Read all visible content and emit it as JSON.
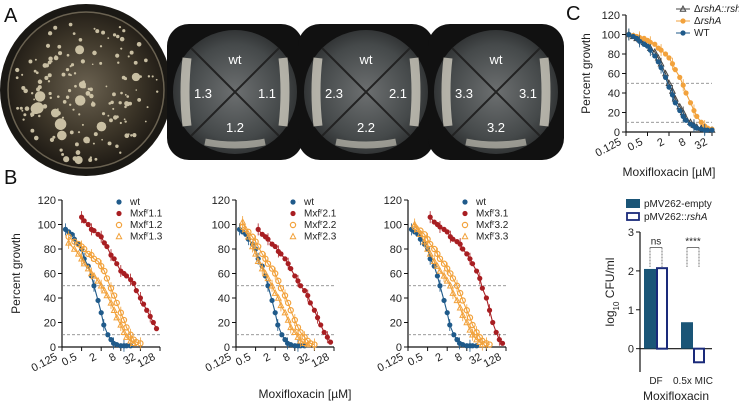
{
  "panels": {
    "a": "A",
    "b": "B",
    "c": "C"
  },
  "colors": {
    "wt": "#1f5a8a",
    "red": "#a81e22",
    "orange": "#f2a23c",
    "navy": "#1a2a7a",
    "teal": "#1a5577",
    "gray": "#555555"
  },
  "plates": {
    "wt_label": "wt",
    "plate1": [
      "1.3",
      "1.1",
      "1.2"
    ],
    "plate2": [
      "2.3",
      "2.1",
      "2.2"
    ],
    "plate3": [
      "3.3",
      "3.1",
      "3.2"
    ]
  },
  "chart_data": [
    {
      "type": "line",
      "id": "B1",
      "xlabel": "",
      "ylabel": "Percent growth",
      "xscale": "log2",
      "xticks": [
        "0.125",
        "0.5",
        "2",
        "8",
        "32",
        "128"
      ],
      "xlim": [
        0.125,
        128
      ],
      "yticks": [
        0,
        20,
        40,
        60,
        80,
        100,
        120
      ],
      "ylim": [
        0,
        120
      ],
      "reference_lines": [
        50,
        10
      ],
      "legend": [
        {
          "name": "wt",
          "prefix": "wt",
          "sup": "",
          "suffix": ""
        },
        {
          "name": "Mxf r 1.1",
          "prefix": "Mxf",
          "sup": "r",
          "suffix": "1.1"
        },
        {
          "name": "Mxf r 1.2",
          "prefix": "Mxf",
          "sup": "r",
          "suffix": "1.2"
        },
        {
          "name": "Mxf r 1.3",
          "prefix": "Mxf",
          "sup": "r",
          "suffix": "1.3"
        }
      ],
      "series": [
        {
          "name": "wt",
          "style": "filled",
          "color": "#1f5a8a",
          "x": [
            0.16,
            0.2,
            0.25,
            0.3,
            0.4,
            0.5,
            0.6,
            0.8,
            1,
            1.2,
            1.6,
            2,
            2.4,
            3.2,
            4,
            4.8,
            6,
            8,
            10,
            12,
            16
          ],
          "y": [
            96,
            94,
            92,
            88,
            84,
            80,
            72,
            66,
            58,
            50,
            38,
            28,
            18,
            10,
            6,
            3,
            2,
            1,
            1,
            1,
            1
          ]
        },
        {
          "name": "Mxf r 1.1",
          "style": "filled",
          "color": "#a81e22",
          "x": [
            0.5,
            0.6,
            0.8,
            1,
            1.2,
            1.6,
            2,
            2.5,
            3,
            4,
            5,
            6,
            8,
            10,
            12,
            16,
            20,
            24,
            32,
            40,
            50,
            64,
            80,
            100
          ],
          "y": [
            106,
            103,
            100,
            96,
            95,
            92,
            90,
            85,
            82,
            75,
            72,
            68,
            62,
            60,
            58,
            55,
            52,
            46,
            40,
            35,
            30,
            25,
            20,
            15
          ]
        },
        {
          "name": "Mxf r 1.2",
          "style": "open",
          "color": "#f2a23c",
          "x": [
            0.2,
            0.3,
            0.4,
            0.5,
            0.6,
            0.8,
            1,
            1.2,
            1.6,
            2,
            2.5,
            3,
            4,
            5,
            6,
            8,
            10,
            12,
            16,
            20,
            24,
            32
          ],
          "y": [
            90,
            86,
            84,
            82,
            80,
            76,
            75,
            72,
            70,
            66,
            62,
            56,
            48,
            42,
            36,
            28,
            22,
            16,
            10,
            6,
            4,
            3
          ]
        },
        {
          "name": "Mxf r 1.3",
          "style": "triangle",
          "color": "#f2a23c",
          "x": [
            0.2,
            0.3,
            0.4,
            0.5,
            0.6,
            0.8,
            1,
            1.2,
            1.6,
            2,
            2.5,
            3,
            4,
            5,
            6,
            8,
            10,
            12,
            16,
            20
          ],
          "y": [
            85,
            80,
            76,
            72,
            68,
            64,
            60,
            58,
            54,
            50,
            46,
            42,
            36,
            30,
            24,
            18,
            12,
            8,
            5,
            3
          ]
        }
      ]
    },
    {
      "type": "line",
      "id": "B2",
      "xlabel": "Moxifloxacin [µM]",
      "ylabel": "",
      "xscale": "log2",
      "xticks": [
        "0.125",
        "0.5",
        "2",
        "8",
        "32",
        "128"
      ],
      "xlim": [
        0.125,
        128
      ],
      "yticks": [
        0,
        20,
        40,
        60,
        80,
        100,
        120
      ],
      "ylim": [
        0,
        120
      ],
      "reference_lines": [
        50,
        10
      ],
      "legend": [
        {
          "name": "wt",
          "prefix": "wt",
          "sup": "",
          "suffix": ""
        },
        {
          "name": "Mxf r 2.1",
          "prefix": "Mxf",
          "sup": "r",
          "suffix": "2.1"
        },
        {
          "name": "Mxf r 2.2",
          "prefix": "Mxf",
          "sup": "r",
          "suffix": "2.2"
        },
        {
          "name": "Mxf r 2.3",
          "prefix": "Mxf",
          "sup": "r",
          "suffix": "2.3"
        }
      ],
      "series": [
        {
          "name": "wt",
          "style": "filled",
          "color": "#1f5a8a",
          "x": [
            0.16,
            0.2,
            0.25,
            0.3,
            0.4,
            0.5,
            0.6,
            0.8,
            1,
            1.2,
            1.6,
            2,
            2.4,
            3.2,
            4,
            4.8,
            6,
            8,
            10,
            12,
            16
          ],
          "y": [
            96,
            94,
            92,
            88,
            84,
            80,
            72,
            66,
            58,
            50,
            38,
            28,
            18,
            10,
            6,
            3,
            2,
            1,
            1,
            1,
            1
          ]
        },
        {
          "name": "Mxf r 2.1",
          "style": "filled",
          "color": "#a81e22",
          "x": [
            0.6,
            0.8,
            1,
            1.2,
            1.6,
            2,
            2.5,
            3,
            4,
            5,
            6,
            8,
            10,
            12,
            16,
            20,
            24,
            32,
            40,
            50,
            64,
            80,
            100
          ],
          "y": [
            96,
            92,
            90,
            88,
            84,
            82,
            78,
            76,
            72,
            68,
            64,
            58,
            54,
            50,
            46,
            42,
            36,
            30,
            24,
            18,
            12,
            8,
            4
          ]
        },
        {
          "name": "Mxf r 2.2",
          "style": "open",
          "color": "#f2a23c",
          "x": [
            0.2,
            0.3,
            0.4,
            0.5,
            0.6,
            0.8,
            1,
            1.2,
            1.6,
            2,
            2.5,
            3,
            4,
            5,
            6,
            8,
            10,
            12,
            16,
            20,
            24,
            32
          ],
          "y": [
            98,
            94,
            90,
            86,
            82,
            76,
            72,
            68,
            64,
            60,
            54,
            48,
            42,
            36,
            30,
            22,
            16,
            12,
            8,
            5,
            3,
            2
          ]
        },
        {
          "name": "Mxf r 2.3",
          "style": "triangle",
          "color": "#f2a23c",
          "x": [
            0.2,
            0.25,
            0.3,
            0.4,
            0.5,
            0.6,
            0.8,
            1,
            1.2,
            1.6,
            2,
            2.5,
            3,
            4,
            5,
            6,
            8,
            10,
            12,
            16,
            20
          ],
          "y": [
            102,
            96,
            90,
            82,
            76,
            70,
            64,
            60,
            56,
            50,
            44,
            40,
            34,
            28,
            22,
            16,
            12,
            8,
            5,
            3,
            2
          ]
        }
      ]
    },
    {
      "type": "line",
      "id": "B3",
      "xlabel": "",
      "ylabel": "",
      "xscale": "log2",
      "xticks": [
        "0.125",
        "0.5",
        "2",
        "8",
        "32",
        "128"
      ],
      "xlim": [
        0.125,
        128
      ],
      "yticks": [
        0,
        20,
        40,
        60,
        80,
        100,
        120
      ],
      "ylim": [
        0,
        120
      ],
      "reference_lines": [
        50,
        10
      ],
      "legend": [
        {
          "name": "wt",
          "prefix": "wt",
          "sup": "",
          "suffix": ""
        },
        {
          "name": "Mxf r 3.1",
          "prefix": "Mxf",
          "sup": "r",
          "suffix": "3.1"
        },
        {
          "name": "Mxf r 3.2",
          "prefix": "Mxf",
          "sup": "r",
          "suffix": "3.2"
        },
        {
          "name": "Mxf r 3.3",
          "prefix": "Mxf",
          "sup": "r",
          "suffix": "3.3"
        }
      ],
      "series": [
        {
          "name": "wt",
          "style": "filled",
          "color": "#1f5a8a",
          "x": [
            0.16,
            0.2,
            0.25,
            0.3,
            0.4,
            0.5,
            0.6,
            0.8,
            1,
            1.2,
            1.6,
            2,
            2.4,
            3.2,
            4,
            4.8,
            6,
            8,
            10,
            12,
            16
          ],
          "y": [
            96,
            94,
            92,
            88,
            84,
            80,
            72,
            66,
            58,
            50,
            38,
            28,
            18,
            10,
            6,
            3,
            2,
            1,
            1,
            1,
            1
          ]
        },
        {
          "name": "Mxf r 3.1",
          "style": "filled",
          "color": "#a81e22",
          "x": [
            0.6,
            0.8,
            1,
            1.2,
            1.6,
            2,
            2.5,
            3,
            4,
            5,
            6,
            8,
            10,
            12,
            16,
            20,
            24,
            32,
            40,
            50,
            64,
            80,
            100
          ],
          "y": [
            106,
            102,
            100,
            98,
            96,
            94,
            90,
            88,
            86,
            84,
            80,
            76,
            72,
            68,
            62,
            56,
            48,
            40,
            30,
            20,
            12,
            6,
            3
          ]
        },
        {
          "name": "Mxf r 3.2",
          "style": "open",
          "color": "#f2a23c",
          "x": [
            0.2,
            0.3,
            0.4,
            0.5,
            0.6,
            0.8,
            1,
            1.2,
            1.6,
            2,
            2.5,
            3,
            4,
            5,
            6,
            8,
            10,
            12,
            16,
            20,
            24,
            32,
            40
          ],
          "y": [
            98,
            95,
            92,
            88,
            84,
            80,
            76,
            72,
            68,
            64,
            60,
            56,
            50,
            44,
            38,
            30,
            24,
            18,
            12,
            8,
            5,
            3,
            2
          ]
        },
        {
          "name": "Mxf r 3.3",
          "style": "triangle",
          "color": "#f2a23c",
          "x": [
            0.2,
            0.25,
            0.3,
            0.4,
            0.5,
            0.6,
            0.8,
            1,
            1.2,
            1.6,
            2,
            2.5,
            3,
            4,
            5,
            6,
            8,
            10,
            12,
            16,
            20,
            24
          ],
          "y": [
            100,
            96,
            92,
            86,
            80,
            76,
            70,
            66,
            62,
            58,
            54,
            50,
            44,
            38,
            32,
            26,
            20,
            14,
            10,
            6,
            4,
            2
          ]
        }
      ]
    },
    {
      "type": "line",
      "id": "C1",
      "xlabel": "Moxifloxacin [µM]",
      "ylabel": "Percent growth",
      "xscale": "log2",
      "xticks": [
        "0.125",
        "0.5",
        "2",
        "8",
        "32"
      ],
      "xlim": [
        0.125,
        32
      ],
      "yticks": [
        0,
        20,
        40,
        60,
        80,
        100,
        120
      ],
      "ylim": [
        0,
        120
      ],
      "reference_lines": [
        50,
        10
      ],
      "legend": [
        {
          "name": "ΔrshA::rshA",
          "prefix": "Δ",
          "italic": "rshA::rshA"
        },
        {
          "name": "ΔrshA",
          "prefix": "Δ",
          "italic": "rshA"
        },
        {
          "name": "WT",
          "prefix": "WT",
          "italic": ""
        }
      ],
      "series": [
        {
          "name": "ΔrshA::rshA",
          "style": "triangle",
          "color": "#444444",
          "x": [
            0.15,
            0.2,
            0.25,
            0.3,
            0.4,
            0.5,
            0.6,
            0.8,
            1,
            1.2,
            1.6,
            2,
            2.5,
            3,
            4,
            5,
            6,
            8,
            10,
            12,
            16,
            20,
            24,
            32
          ],
          "y": [
            100,
            98,
            96,
            95,
            92,
            90,
            86,
            82,
            76,
            70,
            60,
            50,
            42,
            34,
            26,
            20,
            14,
            10,
            7,
            5,
            4,
            3,
            2,
            2
          ]
        },
        {
          "name": "ΔrshA",
          "style": "filled",
          "color": "#f2a23c",
          "x": [
            0.15,
            0.2,
            0.25,
            0.3,
            0.4,
            0.5,
            0.6,
            0.8,
            1,
            1.2,
            1.6,
            2,
            2.5,
            3,
            4,
            5,
            6,
            8,
            10,
            12,
            16,
            20,
            24,
            32
          ],
          "y": [
            100,
            99,
            98,
            97,
            96,
            94,
            92,
            90,
            86,
            84,
            80,
            76,
            70,
            64,
            56,
            48,
            40,
            30,
            22,
            16,
            10,
            6,
            4,
            3
          ]
        },
        {
          "name": "WT",
          "style": "filled",
          "color": "#1f5a8a",
          "x": [
            0.15,
            0.2,
            0.25,
            0.3,
            0.4,
            0.5,
            0.6,
            0.8,
            1,
            1.2,
            1.6,
            2,
            2.5,
            3,
            4,
            5,
            6,
            8,
            10,
            12,
            16,
            20,
            24,
            32
          ],
          "y": [
            100,
            98,
            96,
            93,
            90,
            88,
            84,
            78,
            72,
            66,
            56,
            46,
            38,
            30,
            22,
            16,
            12,
            8,
            6,
            4,
            3,
            2,
            2,
            2
          ]
        }
      ]
    },
    {
      "type": "bar",
      "id": "C2",
      "categories": [
        "DF",
        "0.5x MIC"
      ],
      "xlabel": "Moxifloxacin",
      "ylabel_prefix": "log",
      "ylabel_sub": "10",
      "ylabel_suffix": " CFU/ml",
      "yticks": [
        0,
        1,
        2,
        3
      ],
      "ylim": [
        -0.6,
        3
      ],
      "legend": [
        {
          "name": "pMV262-empty",
          "prefix": "pMV262-empty",
          "italic": ""
        },
        {
          "name": "pMV262::rshA",
          "prefix": "pMV262::",
          "italic": "rshA"
        }
      ],
      "series": [
        {
          "name": "pMV262-empty",
          "style": "filled",
          "color": "#1a5577",
          "values": [
            2.05,
            0.68
          ]
        },
        {
          "name": "pMV262::rshA",
          "style": "open",
          "color": "#1a2a7a",
          "values": [
            2.07,
            -0.35
          ]
        }
      ],
      "annotations": [
        "ns",
        "****"
      ]
    }
  ]
}
